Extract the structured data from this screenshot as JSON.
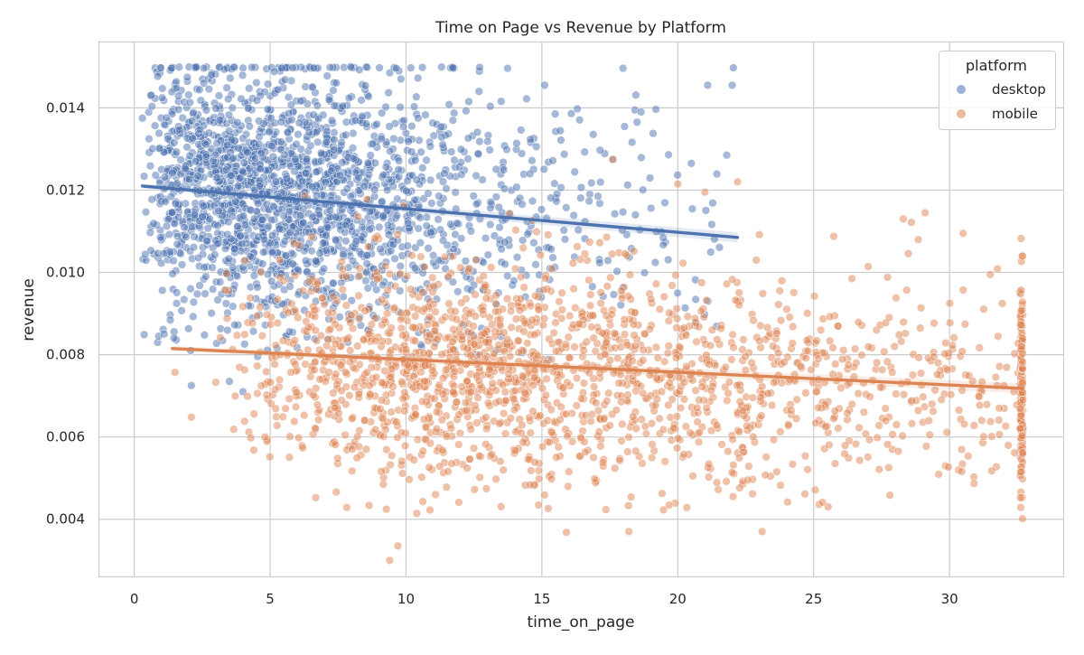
{
  "chart_data": {
    "type": "scatter",
    "title": "Time on Page vs Revenue by Platform",
    "xlabel": "time_on_page",
    "ylabel": "revenue",
    "xlim": [
      -1.3,
      34.2
    ],
    "ylim": [
      0.0026,
      0.0156
    ],
    "x_ticks": [
      0,
      5,
      10,
      15,
      20,
      25,
      30
    ],
    "x_tick_labels": [
      "0",
      "5",
      "10",
      "15",
      "20",
      "25",
      "30"
    ],
    "y_ticks": [
      0.004,
      0.006,
      0.008,
      0.01,
      0.012,
      0.014
    ],
    "y_tick_labels": [
      "0.004",
      "0.006",
      "0.008",
      "0.010",
      "0.012",
      "0.014"
    ],
    "grid": true,
    "legend": {
      "title": "platform",
      "placement": "top-right",
      "entries": [
        "desktop",
        "mobile"
      ]
    },
    "series": [
      {
        "name": "desktop",
        "color": "#4c72b0",
        "point_count": 2100,
        "x_range": [
          0.3,
          22.1
        ],
        "y_range": [
          0.007,
          0.015
        ],
        "y_cap": 0.015,
        "trend": {
          "x0": 0.3,
          "y0": 0.0121,
          "x1": 22.2,
          "y1": 0.01085
        },
        "outliers": [
          [
            21.1,
            0.01455
          ],
          [
            22.0,
            0.01455
          ],
          [
            15.1,
            0.01455
          ],
          [
            21.8,
            0.01285
          ],
          [
            20.5,
            0.01265
          ],
          [
            18.5,
            0.01365
          ],
          [
            2.1,
            0.00725
          ],
          [
            0.9,
            0.00845
          ],
          [
            1.1,
            0.0085
          ],
          [
            4.0,
            0.0071
          ],
          [
            3.5,
            0.00735
          ]
        ]
      },
      {
        "name": "mobile",
        "color": "#dd8452",
        "point_count": 2000,
        "x_range": [
          1.5,
          32.7
        ],
        "y_range": [
          0.003,
          0.0128
        ],
        "x_cap": 32.7,
        "trend": {
          "x0": 1.4,
          "y0": 0.00815,
          "x1": 32.7,
          "y1": 0.00718
        },
        "outliers": [
          [
            9.4,
            0.003
          ],
          [
            9.7,
            0.00335
          ],
          [
            23.1,
            0.0037
          ],
          [
            15.9,
            0.00368
          ],
          [
            18.2,
            0.0037
          ],
          [
            28.3,
            0.0113
          ],
          [
            29.1,
            0.01145
          ],
          [
            30.5,
            0.01095
          ],
          [
            22.2,
            0.0122
          ],
          [
            20.0,
            0.01215
          ],
          [
            21.0,
            0.01195
          ],
          [
            17.6,
            0.01275
          ],
          [
            31.5,
            0.00995
          ],
          [
            1.5,
            0.00757
          ],
          [
            2.1,
            0.00648
          ],
          [
            4.4,
            0.00568
          ]
        ]
      }
    ]
  }
}
